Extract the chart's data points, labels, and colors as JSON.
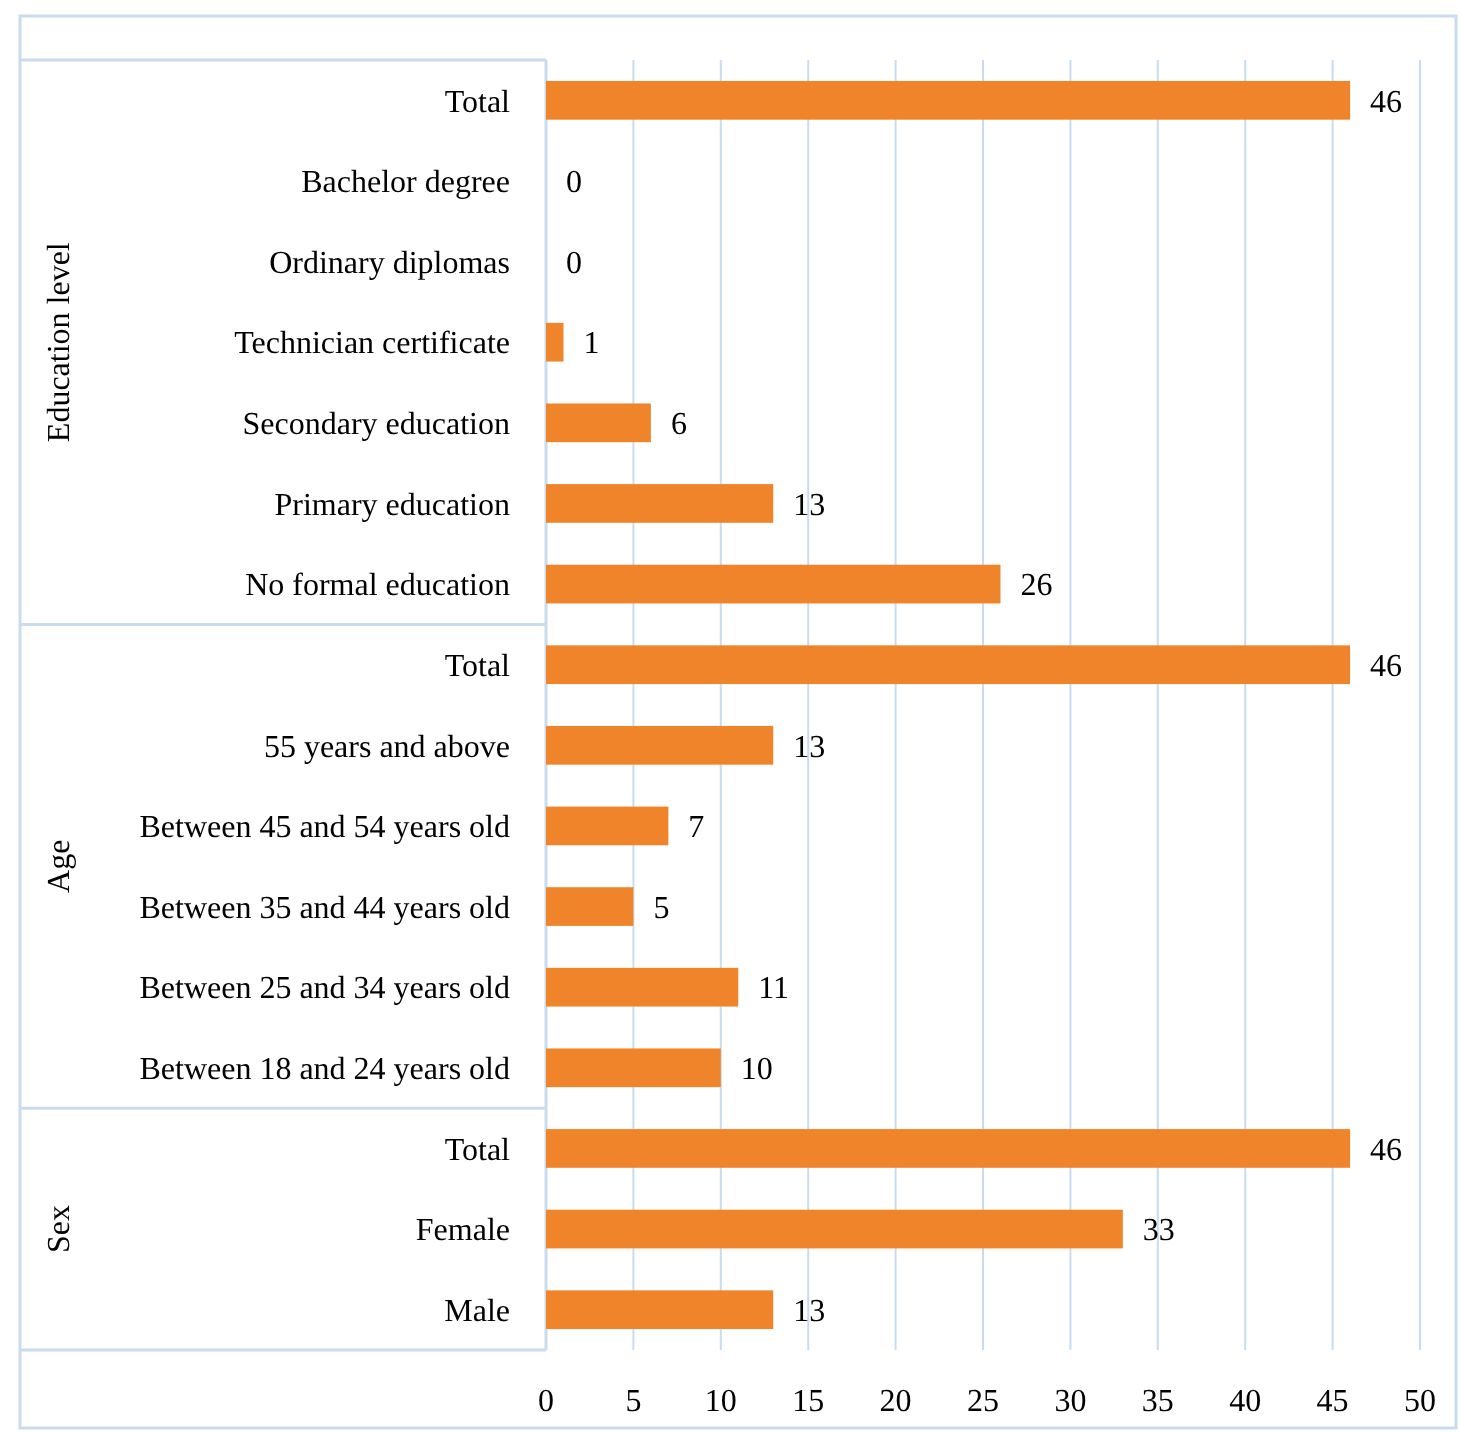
{
  "chart_data": {
    "type": "bar",
    "orientation": "horizontal",
    "categories": [
      "Total",
      "Bachelor degree",
      "Ordinary diplomas",
      "Technician certificate",
      "Secondary education",
      "Primary education",
      "No formal education",
      "Total",
      "55 years and above",
      "Between 45 and 54 years old",
      "Between 35 and 44 years old",
      "Between 25 and 34 years old",
      "Between 18 and 24 years old",
      "Total",
      "Female",
      "Male"
    ],
    "values": [
      46,
      0,
      0,
      1,
      6,
      13,
      26,
      46,
      13,
      7,
      5,
      11,
      10,
      46,
      33,
      13
    ],
    "color": "#f0842a",
    "xlim": [
      0,
      50
    ],
    "xticks": [
      0,
      5,
      10,
      15,
      20,
      25,
      30,
      35,
      40,
      45,
      50
    ],
    "grid": "x",
    "data_labels": true,
    "annotations": [
      "Education level",
      "Age",
      "Sex"
    ]
  }
}
